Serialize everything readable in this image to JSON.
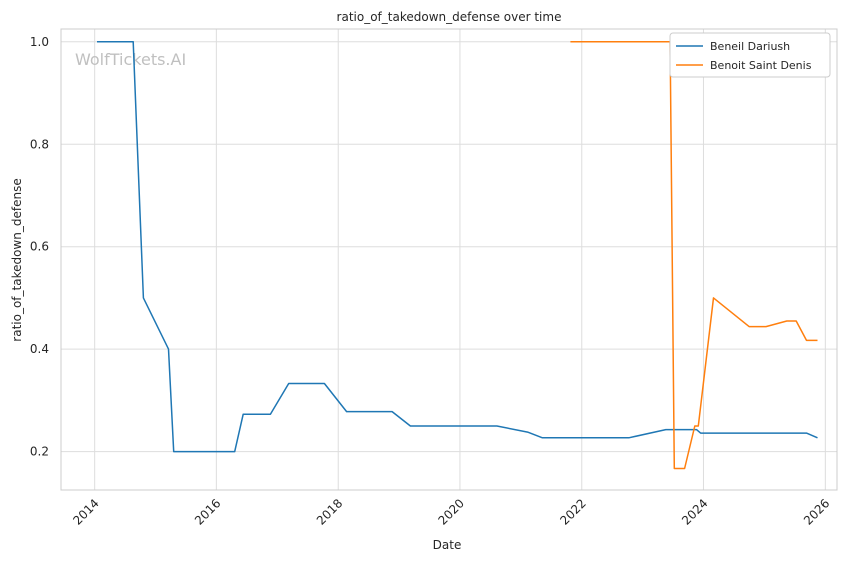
{
  "chart_data": {
    "type": "line",
    "title": "ratio_of_takedown_defense over time",
    "xlabel": "Date",
    "ylabel": "ratio_of_takedown_defense",
    "watermark": "WolfTickets.AI",
    "xlim": [
      "2013-06-13",
      "2026-03-12"
    ],
    "ylim": [
      0.125,
      1.025
    ],
    "x_ticks": [
      "2014",
      "2016",
      "2018",
      "2020",
      "2022",
      "2024",
      "2026"
    ],
    "y_ticks": [
      "0.2",
      "0.4",
      "0.6",
      "0.8",
      "1.0"
    ],
    "grid": true,
    "legend_position": "top-right",
    "series": [
      {
        "name": "Beneil Dariush",
        "color": "#1f77b4",
        "points": [
          [
            "2014-01-15",
            1.0
          ],
          [
            "2014-08-20",
            1.0
          ],
          [
            "2014-10-20",
            0.5
          ],
          [
            "2015-03-20",
            0.4
          ],
          [
            "2015-04-20",
            0.2
          ],
          [
            "2016-04-20",
            0.2
          ],
          [
            "2016-06-10",
            0.273
          ],
          [
            "2016-11-20",
            0.273
          ],
          [
            "2017-03-10",
            0.333
          ],
          [
            "2017-10-10",
            0.333
          ],
          [
            "2018-02-20",
            0.278
          ],
          [
            "2018-11-20",
            0.278
          ],
          [
            "2019-03-10",
            0.25
          ],
          [
            "2020-08-10",
            0.25
          ],
          [
            "2021-02-10",
            0.238
          ],
          [
            "2021-05-10",
            0.227
          ],
          [
            "2022-10-10",
            0.227
          ],
          [
            "2023-05-20",
            0.243
          ],
          [
            "2023-11-20",
            0.243
          ],
          [
            "2023-12-15",
            0.236
          ],
          [
            "2025-09-10",
            0.236
          ],
          [
            "2025-11-15",
            0.227
          ]
        ]
      },
      {
        "name": "Benoit Saint Denis",
        "color": "#ff7f0e",
        "points": [
          [
            "2021-10-25",
            1.0
          ],
          [
            "2023-06-15",
            1.0
          ],
          [
            "2023-07-10",
            0.167
          ],
          [
            "2023-09-10",
            0.167
          ],
          [
            "2023-11-10",
            0.25
          ],
          [
            "2023-12-01",
            0.25
          ],
          [
            "2024-03-01",
            0.5
          ],
          [
            "2024-10-01",
            0.444
          ],
          [
            "2025-01-10",
            0.444
          ],
          [
            "2025-05-15",
            0.455
          ],
          [
            "2025-07-10",
            0.455
          ],
          [
            "2025-09-10",
            0.417
          ],
          [
            "2025-11-15",
            0.417
          ]
        ]
      }
    ]
  }
}
